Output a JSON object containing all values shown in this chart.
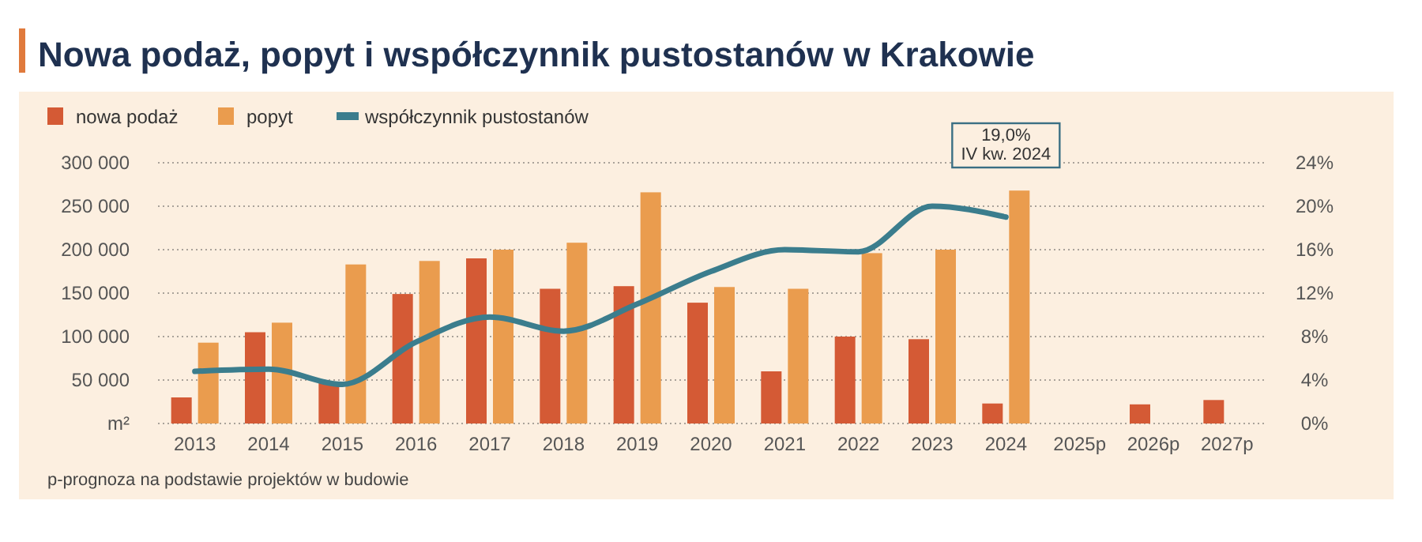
{
  "chart_data": {
    "type": "bar",
    "title": "Nowa podaż, popyt i współczynnik pustostanów w Krakowie",
    "categories": [
      "2013",
      "2014",
      "2015",
      "2016",
      "2017",
      "2018",
      "2019",
      "2020",
      "2021",
      "2022",
      "2023",
      "2024",
      "2025p",
      "2026p",
      "2027p"
    ],
    "series": [
      {
        "name": "nowa podaż",
        "color": "#d45a35",
        "values": [
          30000,
          105000,
          48000,
          149000,
          190000,
          155000,
          158000,
          139000,
          60000,
          100000,
          97000,
          23000,
          null,
          22000,
          27000
        ]
      },
      {
        "name": "popyt",
        "color": "#ea9c4e",
        "values": [
          93000,
          116000,
          183000,
          187000,
          200000,
          208000,
          266000,
          157000,
          155000,
          196000,
          200000,
          268000,
          null,
          null,
          null
        ]
      },
      {
        "name": "współczynnik pustostanów",
        "type": "line",
        "axis": "y2",
        "color": "#3b7d8d",
        "values": [
          4.8,
          5.0,
          3.6,
          7.5,
          9.8,
          8.5,
          11,
          14,
          16,
          15.8,
          20,
          19.0,
          null,
          null,
          null
        ]
      }
    ],
    "ylim": [
      0,
      300000
    ],
    "yticks": [
      {
        "value": 0,
        "label": "m²"
      },
      {
        "value": 50000,
        "label": "50 000"
      },
      {
        "value": 100000,
        "label": "100 000"
      },
      {
        "value": 150000,
        "label": "150 000"
      },
      {
        "value": 200000,
        "label": "200 000"
      },
      {
        "value": 250000,
        "label": "250 000"
      },
      {
        "value": 300000,
        "label": "300 000"
      }
    ],
    "y2lim": [
      0,
      24
    ],
    "y2ticks": [
      {
        "value": 0,
        "label": "0%"
      },
      {
        "value": 4,
        "label": "4%"
      },
      {
        "value": 8,
        "label": "8%"
      },
      {
        "value": 12,
        "label": "12%"
      },
      {
        "value": 16,
        "label": "16%"
      },
      {
        "value": 20,
        "label": "20%"
      },
      {
        "value": 24,
        "label": "24%"
      }
    ],
    "grid": "y",
    "legend": "top left",
    "marker": "none",
    "annotations": [
      "19,0%\nIV kw. 2024",
      "p-prognoza na podstawie projektów w budowie"
    ]
  }
}
